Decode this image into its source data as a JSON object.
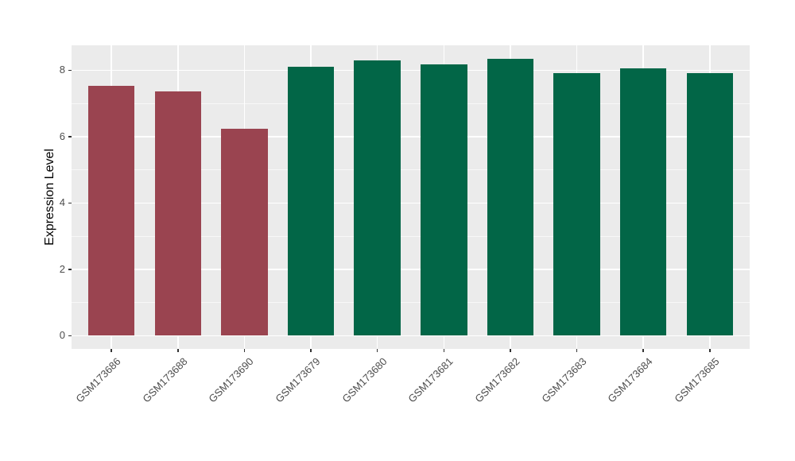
{
  "chart_data": {
    "type": "bar",
    "title": "",
    "xlabel": "",
    "ylabel": "Expression Level",
    "categories": [
      "GSM173686",
      "GSM173688",
      "GSM173690",
      "GSM173679",
      "GSM173680",
      "GSM173681",
      "GSM173682",
      "GSM173683",
      "GSM173684",
      "GSM173685"
    ],
    "values": [
      7.54,
      7.37,
      6.24,
      8.11,
      8.3,
      8.17,
      8.35,
      7.9,
      8.05,
      7.92
    ],
    "bar_colors": [
      "#9A4450",
      "#9A4450",
      "#9A4450",
      "#026647",
      "#026647",
      "#026647",
      "#026647",
      "#026647",
      "#026647",
      "#026647"
    ],
    "group_colors": {
      "left_group": "#9A4450",
      "right_group": "#026647"
    },
    "yticks": [
      0,
      2,
      4,
      6,
      8
    ],
    "minor_yticks": [
      1,
      3,
      5,
      7
    ],
    "ylim": [
      -0.4,
      8.75
    ],
    "grid": "on",
    "legend": "none",
    "panel_background": "#EBEBEB",
    "grid_color": "#FFFFFF",
    "tick_color": "#333333",
    "tick_label_color": "#4D4D4D",
    "axis_title_color": "#000000",
    "figure_background": "#FFFFFF"
  }
}
